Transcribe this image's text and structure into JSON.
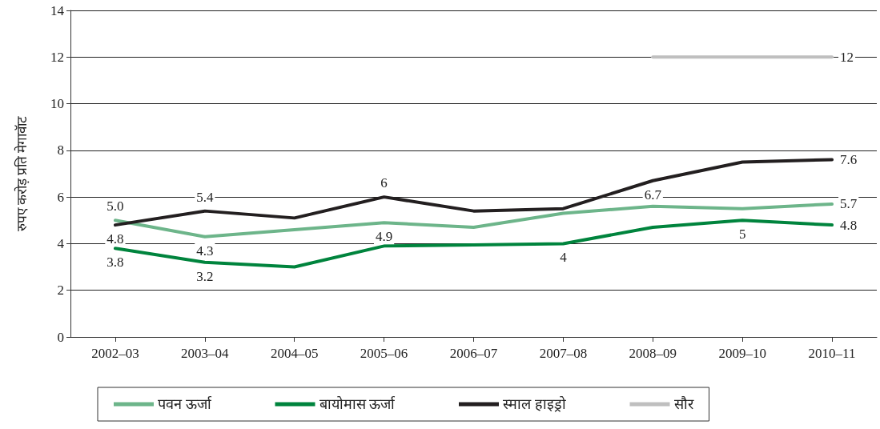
{
  "chart_data": {
    "type": "line",
    "ylabel": "रुपए करोड़ प्रति मेगावॅाट",
    "categories": [
      "2002–03",
      "2003–04",
      "2004–05",
      "2005–06",
      "2006–07",
      "2007–08",
      "2008–09",
      "2009–10",
      "2010–11"
    ],
    "series": [
      {
        "name": "पवन ऊर्जा",
        "color": "#6db58a",
        "values": [
          5.0,
          4.3,
          4.6,
          4.9,
          4.7,
          5.3,
          5.6,
          5.5,
          5.7
        ],
        "value_labels": [
          "5.0",
          "4.3",
          null,
          "4.9",
          null,
          null,
          null,
          null,
          "5.7"
        ]
      },
      {
        "name": "बायोमास ऊर्जा",
        "color": "#00843d",
        "values": [
          3.8,
          3.2,
          3.0,
          3.9,
          3.95,
          4,
          4.7,
          5,
          4.8
        ],
        "value_labels": [
          "3.8",
          "3.2",
          null,
          null,
          null,
          "4",
          null,
          "5",
          "4.8"
        ]
      },
      {
        "name": "स्माल हाइड्रो",
        "color": "#231f20",
        "values": [
          4.8,
          5.4,
          5.1,
          6,
          5.4,
          5.5,
          6.7,
          7.5,
          7.6
        ],
        "value_labels": [
          "4.8",
          "5.4",
          null,
          "6",
          null,
          null,
          "6.7",
          null,
          "7.6"
        ]
      },
      {
        "name": "सौर",
        "color": "#bfbfbf",
        "values": [
          null,
          null,
          null,
          null,
          null,
          null,
          12,
          12,
          12
        ],
        "value_labels": [
          null,
          null,
          null,
          null,
          null,
          null,
          null,
          null,
          "12"
        ]
      }
    ],
    "ylim": [
      0,
      14
    ],
    "yticks": [
      0,
      2,
      4,
      6,
      8,
      10,
      12,
      14
    ],
    "grid": "y",
    "legend": "bottom",
    "marker": "none",
    "line_style": "solid"
  }
}
